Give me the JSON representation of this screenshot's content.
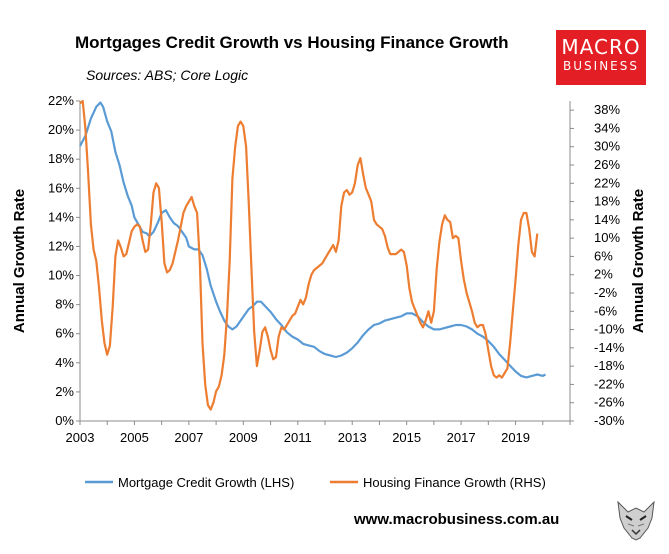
{
  "header": {
    "title": "Mortgages Credit Growth vs Housing Finance Growth",
    "subtitle": "Sources: ABS; Core Logic"
  },
  "logo": {
    "line1": "MACRO",
    "line2": "BUSINESS",
    "color": "#e31e24"
  },
  "footer": {
    "website": "www.macrobusiness.com.au"
  },
  "chart_data": {
    "type": "line",
    "title": "Mortgages Credit Growth vs Housing Finance Growth",
    "subtitle": "Sources: ABS; Core Logic",
    "ylabel": "Annual Growth Rate",
    "y2label": "Annual Growth Rate",
    "xlim": [
      2003,
      2021
    ],
    "ylim": [
      0,
      22
    ],
    "y2lim": [
      -30,
      40
    ],
    "x_ticks": [
      "2003",
      "2005",
      "2007",
      "2009",
      "2011",
      "2013",
      "2015",
      "2017",
      "2019"
    ],
    "y_ticks": [
      "0%",
      "2%",
      "4%",
      "6%",
      "8%",
      "10%",
      "12%",
      "14%",
      "16%",
      "18%",
      "20%",
      "22%"
    ],
    "y2_ticks": [
      "-30%",
      "-26%",
      "-22%",
      "-18%",
      "-14%",
      "-10%",
      "-6%",
      "-2%",
      "2%",
      "6%",
      "10%",
      "14%",
      "18%",
      "22%",
      "26%",
      "30%",
      "34%",
      "38%"
    ],
    "grid": false,
    "legend_position": "bottom",
    "series": [
      {
        "name": "Mortgage Credit Growth (LHS)",
        "axis": "left",
        "color": "#5b9bd5",
        "points": [
          [
            2003.0,
            18.9
          ],
          [
            2003.2,
            19.6
          ],
          [
            2003.4,
            20.8
          ],
          [
            2003.6,
            21.6
          ],
          [
            2003.75,
            21.9
          ],
          [
            2003.85,
            21.6
          ],
          [
            2004.0,
            20.6
          ],
          [
            2004.15,
            19.9
          ],
          [
            2004.3,
            18.5
          ],
          [
            2004.45,
            17.6
          ],
          [
            2004.6,
            16.4
          ],
          [
            2004.75,
            15.5
          ],
          [
            2004.9,
            14.8
          ],
          [
            2005.0,
            14.0
          ],
          [
            2005.15,
            13.5
          ],
          [
            2005.3,
            13.0
          ],
          [
            2005.45,
            12.9
          ],
          [
            2005.55,
            12.7
          ],
          [
            2005.7,
            13.0
          ],
          [
            2005.85,
            13.6
          ],
          [
            2006.0,
            14.3
          ],
          [
            2006.15,
            14.5
          ],
          [
            2006.3,
            14.0
          ],
          [
            2006.45,
            13.6
          ],
          [
            2006.6,
            13.4
          ],
          [
            2006.75,
            13.0
          ],
          [
            2006.9,
            12.6
          ],
          [
            2007.0,
            12.0
          ],
          [
            2007.2,
            11.8
          ],
          [
            2007.35,
            11.8
          ],
          [
            2007.5,
            11.4
          ],
          [
            2007.65,
            10.5
          ],
          [
            2007.8,
            9.3
          ],
          [
            2008.0,
            8.2
          ],
          [
            2008.15,
            7.5
          ],
          [
            2008.3,
            6.9
          ],
          [
            2008.45,
            6.5
          ],
          [
            2008.6,
            6.3
          ],
          [
            2008.75,
            6.5
          ],
          [
            2008.9,
            6.9
          ],
          [
            2009.05,
            7.3
          ],
          [
            2009.2,
            7.7
          ],
          [
            2009.35,
            7.9
          ],
          [
            2009.5,
            8.2
          ],
          [
            2009.65,
            8.2
          ],
          [
            2009.8,
            7.9
          ],
          [
            2010.0,
            7.5
          ],
          [
            2010.2,
            7.0
          ],
          [
            2010.4,
            6.6
          ],
          [
            2010.6,
            6.1
          ],
          [
            2010.8,
            5.8
          ],
          [
            2011.0,
            5.6
          ],
          [
            2011.2,
            5.3
          ],
          [
            2011.4,
            5.2
          ],
          [
            2011.6,
            5.1
          ],
          [
            2011.8,
            4.8
          ],
          [
            2012.0,
            4.6
          ],
          [
            2012.2,
            4.5
          ],
          [
            2012.4,
            4.4
          ],
          [
            2012.6,
            4.5
          ],
          [
            2012.8,
            4.7
          ],
          [
            2013.0,
            5.0
          ],
          [
            2013.2,
            5.4
          ],
          [
            2013.4,
            5.9
          ],
          [
            2013.6,
            6.3
          ],
          [
            2013.8,
            6.6
          ],
          [
            2014.0,
            6.7
          ],
          [
            2014.2,
            6.9
          ],
          [
            2014.4,
            7.0
          ],
          [
            2014.6,
            7.1
          ],
          [
            2014.8,
            7.2
          ],
          [
            2015.0,
            7.4
          ],
          [
            2015.2,
            7.4
          ],
          [
            2015.4,
            7.2
          ],
          [
            2015.6,
            6.8
          ],
          [
            2015.8,
            6.5
          ],
          [
            2016.0,
            6.3
          ],
          [
            2016.2,
            6.3
          ],
          [
            2016.4,
            6.4
          ],
          [
            2016.6,
            6.5
          ],
          [
            2016.8,
            6.6
          ],
          [
            2017.0,
            6.6
          ],
          [
            2017.2,
            6.5
          ],
          [
            2017.4,
            6.3
          ],
          [
            2017.6,
            6.0
          ],
          [
            2017.8,
            5.8
          ],
          [
            2018.0,
            5.5
          ],
          [
            2018.2,
            5.1
          ],
          [
            2018.4,
            4.6
          ],
          [
            2018.6,
            4.2
          ],
          [
            2018.8,
            3.8
          ],
          [
            2019.0,
            3.4
          ],
          [
            2019.2,
            3.1
          ],
          [
            2019.4,
            3.0
          ],
          [
            2019.6,
            3.1
          ],
          [
            2019.8,
            3.2
          ],
          [
            2020.0,
            3.1
          ],
          [
            2020.1,
            3.2
          ]
        ]
      },
      {
        "name": "Housing Finance Growth (RHS)",
        "axis": "right",
        "color": "#ed7d31",
        "points": [
          [
            2003.0,
            39.5
          ],
          [
            2003.1,
            40.0
          ],
          [
            2003.2,
            34.0
          ],
          [
            2003.3,
            24.0
          ],
          [
            2003.4,
            13.0
          ],
          [
            2003.5,
            7.5
          ],
          [
            2003.6,
            5.0
          ],
          [
            2003.7,
            -1.0
          ],
          [
            2003.8,
            -8.0
          ],
          [
            2003.9,
            -13.0
          ],
          [
            2004.0,
            -15.5
          ],
          [
            2004.1,
            -13.5
          ],
          [
            2004.2,
            -5.0
          ],
          [
            2004.3,
            6.0
          ],
          [
            2004.4,
            9.5
          ],
          [
            2004.5,
            8.0
          ],
          [
            2004.6,
            6.0
          ],
          [
            2004.7,
            6.5
          ],
          [
            2004.8,
            9.0
          ],
          [
            2004.9,
            11.5
          ],
          [
            2005.0,
            12.5
          ],
          [
            2005.1,
            13.0
          ],
          [
            2005.2,
            12.5
          ],
          [
            2005.3,
            9.5
          ],
          [
            2005.4,
            7.0
          ],
          [
            2005.5,
            7.5
          ],
          [
            2005.6,
            13.0
          ],
          [
            2005.7,
            20.0
          ],
          [
            2005.8,
            22.0
          ],
          [
            2005.9,
            21.0
          ],
          [
            2006.0,
            13.5
          ],
          [
            2006.1,
            4.5
          ],
          [
            2006.2,
            2.5
          ],
          [
            2006.3,
            3.0
          ],
          [
            2006.4,
            4.5
          ],
          [
            2006.5,
            7.0
          ],
          [
            2006.6,
            9.5
          ],
          [
            2006.7,
            12.5
          ],
          [
            2006.8,
            15.5
          ],
          [
            2006.9,
            17.0
          ],
          [
            2007.0,
            18.0
          ],
          [
            2007.1,
            19.0
          ],
          [
            2007.2,
            17.0
          ],
          [
            2007.3,
            15.5
          ],
          [
            2007.4,
            5.0
          ],
          [
            2007.5,
            -13.0
          ],
          [
            2007.6,
            -22.0
          ],
          [
            2007.7,
            -26.5
          ],
          [
            2007.8,
            -27.5
          ],
          [
            2007.9,
            -26.0
          ],
          [
            2008.0,
            -23.5
          ],
          [
            2008.1,
            -22.5
          ],
          [
            2008.2,
            -20.0
          ],
          [
            2008.3,
            -15.5
          ],
          [
            2008.4,
            -7.0
          ],
          [
            2008.5,
            5.0
          ],
          [
            2008.6,
            23.0
          ],
          [
            2008.7,
            30.0
          ],
          [
            2008.8,
            34.5
          ],
          [
            2008.9,
            35.5
          ],
          [
            2009.0,
            34.5
          ],
          [
            2009.1,
            30.0
          ],
          [
            2009.2,
            17.5
          ],
          [
            2009.3,
            3.0
          ],
          [
            2009.4,
            -10.5
          ],
          [
            2009.5,
            -18.0
          ],
          [
            2009.6,
            -14.5
          ],
          [
            2009.7,
            -10.5
          ],
          [
            2009.8,
            -9.5
          ],
          [
            2009.9,
            -11.5
          ],
          [
            2010.0,
            -14.5
          ],
          [
            2010.1,
            -16.5
          ],
          [
            2010.2,
            -16.0
          ],
          [
            2010.3,
            -11.5
          ],
          [
            2010.4,
            -9.5
          ],
          [
            2010.5,
            -10.0
          ],
          [
            2010.6,
            -9.0
          ],
          [
            2010.7,
            -8.0
          ],
          [
            2010.8,
            -7.0
          ],
          [
            2010.9,
            -6.5
          ],
          [
            2011.0,
            -5.0
          ],
          [
            2011.1,
            -3.5
          ],
          [
            2011.2,
            -4.5
          ],
          [
            2011.3,
            -3.0
          ],
          [
            2011.4,
            0.0
          ],
          [
            2011.5,
            2.0
          ],
          [
            2011.6,
            3.0
          ],
          [
            2011.7,
            3.5
          ],
          [
            2011.8,
            4.0
          ],
          [
            2011.9,
            4.5
          ],
          [
            2012.0,
            5.5
          ],
          [
            2012.1,
            6.5
          ],
          [
            2012.2,
            7.5
          ],
          [
            2012.3,
            8.5
          ],
          [
            2012.4,
            7.0
          ],
          [
            2012.5,
            9.5
          ],
          [
            2012.6,
            17.0
          ],
          [
            2012.7,
            20.0
          ],
          [
            2012.8,
            20.5
          ],
          [
            2012.9,
            19.5
          ],
          [
            2013.0,
            20.0
          ],
          [
            2013.1,
            22.0
          ],
          [
            2013.2,
            26.0
          ],
          [
            2013.3,
            27.5
          ],
          [
            2013.4,
            24.0
          ],
          [
            2013.5,
            21.0
          ],
          [
            2013.6,
            19.5
          ],
          [
            2013.7,
            18.0
          ],
          [
            2013.8,
            14.0
          ],
          [
            2013.9,
            13.0
          ],
          [
            2014.0,
            12.5
          ],
          [
            2014.1,
            12.0
          ],
          [
            2014.2,
            10.5
          ],
          [
            2014.3,
            8.0
          ],
          [
            2014.4,
            6.5
          ],
          [
            2014.5,
            6.5
          ],
          [
            2014.6,
            6.5
          ],
          [
            2014.7,
            7.0
          ],
          [
            2014.8,
            7.5
          ],
          [
            2014.9,
            7.0
          ],
          [
            2015.0,
            4.0
          ],
          [
            2015.1,
            -1.0
          ],
          [
            2015.2,
            -4.0
          ],
          [
            2015.3,
            -5.5
          ],
          [
            2015.4,
            -7.0
          ],
          [
            2015.5,
            -8.5
          ],
          [
            2015.6,
            -9.5
          ],
          [
            2015.7,
            -8.0
          ],
          [
            2015.8,
            -6.0
          ],
          [
            2015.9,
            -8.5
          ],
          [
            2016.0,
            -6.0
          ],
          [
            2016.1,
            3.0
          ],
          [
            2016.2,
            9.0
          ],
          [
            2016.3,
            13.0
          ],
          [
            2016.4,
            15.0
          ],
          [
            2016.5,
            14.0
          ],
          [
            2016.6,
            13.5
          ],
          [
            2016.7,
            10.0
          ],
          [
            2016.8,
            10.5
          ],
          [
            2016.9,
            10.0
          ],
          [
            2017.0,
            5.0
          ],
          [
            2017.1,
            1.0
          ],
          [
            2017.2,
            -2.0
          ],
          [
            2017.3,
            -4.0
          ],
          [
            2017.4,
            -6.0
          ],
          [
            2017.5,
            -8.5
          ],
          [
            2017.6,
            -9.5
          ],
          [
            2017.7,
            -9.0
          ],
          [
            2017.8,
            -9.0
          ],
          [
            2017.9,
            -11.0
          ],
          [
            2018.0,
            -14.5
          ],
          [
            2018.1,
            -18.0
          ],
          [
            2018.2,
            -20.0
          ],
          [
            2018.3,
            -20.5
          ],
          [
            2018.4,
            -20.0
          ],
          [
            2018.5,
            -20.5
          ],
          [
            2018.6,
            -19.5
          ],
          [
            2018.7,
            -18.5
          ],
          [
            2018.8,
            -13.0
          ],
          [
            2018.9,
            -6.0
          ],
          [
            2019.0,
            1.0
          ],
          [
            2019.1,
            8.5
          ],
          [
            2019.2,
            14.0
          ],
          [
            2019.3,
            15.5
          ],
          [
            2019.4,
            15.5
          ],
          [
            2019.5,
            12.0
          ],
          [
            2019.6,
            7.0
          ],
          [
            2019.7,
            6.0
          ],
          [
            2019.8,
            11.0
          ]
        ]
      }
    ]
  }
}
